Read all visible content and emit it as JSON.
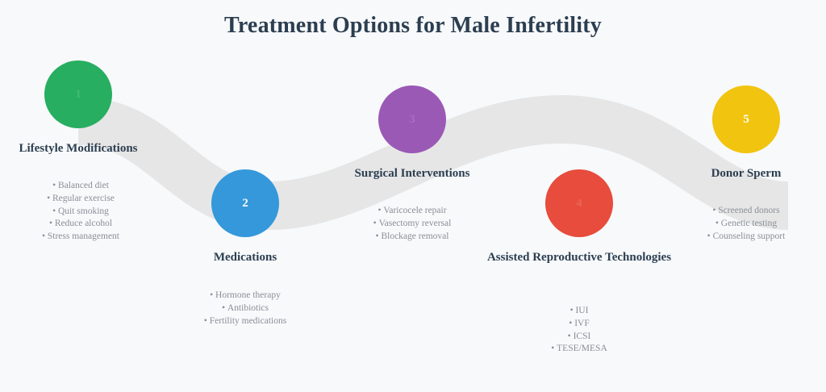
{
  "title": "Treatment Options for Male Infertility",
  "steps": [
    {
      "number": "1",
      "color": "#27ae60",
      "title": "Lifestyle Modifications",
      "items": [
        "Balanced diet",
        "Regular exercise",
        "Quit smoking",
        "Reduce alcohol",
        "Stress management"
      ]
    },
    {
      "number": "2",
      "color": "#3498db",
      "title": "Medications",
      "items": [
        "Hormone therapy",
        "Antibiotics",
        "Fertility medications"
      ]
    },
    {
      "number": "3",
      "color": "#9b59b6",
      "title": "Surgical Interventions",
      "items": [
        "Varicocele repair",
        "Vasectomy reversal",
        "Blockage removal"
      ]
    },
    {
      "number": "4",
      "color": "#e74c3c",
      "title": "Assisted Reproductive Technologies",
      "items": [
        "IUI",
        "IVF",
        "ICSI",
        "TESE/MESA"
      ]
    },
    {
      "number": "5",
      "color": "#f1c40f",
      "title": "Donor Sperm",
      "items": [
        "Screened donors",
        "Genetic testing",
        "Counseling support"
      ]
    }
  ],
  "wave_color": "#e6e6e6"
}
